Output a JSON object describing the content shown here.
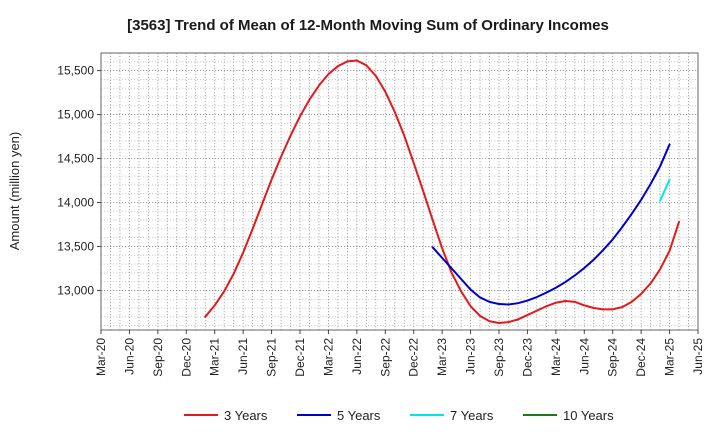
{
  "chart_data": {
    "type": "line",
    "title": "[3563]  Trend of Mean of 12-Month Moving Sum of Ordinary Incomes",
    "xlabel": "",
    "ylabel": "Amount (million yen)",
    "ylim": [
      12550,
      15700
    ],
    "yticks": [
      13000,
      13500,
      14000,
      14500,
      15000,
      15500
    ],
    "ytick_labels": [
      "13,000",
      "13,500",
      "14,000",
      "14,500",
      "15,000",
      "15,500"
    ],
    "xtick_labels": [
      "Mar-20",
      "Jun-20",
      "Sep-20",
      "Dec-20",
      "Mar-21",
      "Jun-21",
      "Sep-21",
      "Dec-21",
      "Mar-22",
      "Jun-22",
      "Sep-22",
      "Dec-22",
      "Mar-23",
      "Jun-23",
      "Sep-23",
      "Dec-23",
      "Mar-24",
      "Jun-24",
      "Sep-24",
      "Dec-24",
      "Mar-25",
      "Jun-25"
    ],
    "x_index_note": "x values are month offsets from Mar-20 (0 = Mar-20, 3 = Jun-20, ...)",
    "grid": true,
    "legend_position": "bottom",
    "series": [
      {
        "name": "3 Years",
        "color": "#e31a1c",
        "points": [
          [
            11,
            12700
          ],
          [
            12,
            12830
          ],
          [
            13,
            12990
          ],
          [
            14,
            13190
          ],
          [
            15,
            13430
          ],
          [
            16,
            13700
          ],
          [
            17,
            13980
          ],
          [
            18,
            14260
          ],
          [
            19,
            14520
          ],
          [
            20,
            14760
          ],
          [
            21,
            14980
          ],
          [
            22,
            15170
          ],
          [
            23,
            15330
          ],
          [
            24,
            15460
          ],
          [
            25,
            15550
          ],
          [
            26,
            15605
          ],
          [
            27,
            15615
          ],
          [
            28,
            15560
          ],
          [
            29,
            15440
          ],
          [
            30,
            15260
          ],
          [
            31,
            15030
          ],
          [
            32,
            14760
          ],
          [
            33,
            14450
          ],
          [
            34,
            14130
          ],
          [
            35,
            13800
          ],
          [
            36,
            13480
          ],
          [
            37,
            13200
          ],
          [
            38,
            12990
          ],
          [
            39,
            12820
          ],
          [
            40,
            12710
          ],
          [
            41,
            12650
          ],
          [
            42,
            12630
          ],
          [
            43,
            12640
          ],
          [
            44,
            12670
          ],
          [
            45,
            12720
          ],
          [
            46,
            12770
          ],
          [
            47,
            12820
          ],
          [
            48,
            12860
          ],
          [
            49,
            12880
          ],
          [
            50,
            12870
          ],
          [
            51,
            12830
          ],
          [
            52,
            12800
          ],
          [
            53,
            12785
          ],
          [
            54,
            12785
          ],
          [
            55,
            12810
          ],
          [
            56,
            12870
          ],
          [
            57,
            12960
          ],
          [
            58,
            13080
          ],
          [
            59,
            13240
          ],
          [
            60,
            13450
          ],
          [
            61,
            13780
          ]
        ]
      },
      {
        "name": "5 Years",
        "color": "#0000cc",
        "points": [
          [
            35,
            13490
          ],
          [
            36,
            13370
          ],
          [
            37,
            13250
          ],
          [
            38,
            13130
          ],
          [
            39,
            13010
          ],
          [
            40,
            12920
          ],
          [
            41,
            12870
          ],
          [
            42,
            12845
          ],
          [
            43,
            12840
          ],
          [
            44,
            12855
          ],
          [
            45,
            12885
          ],
          [
            46,
            12925
          ],
          [
            47,
            12975
          ],
          [
            48,
            13030
          ],
          [
            49,
            13095
          ],
          [
            50,
            13170
          ],
          [
            51,
            13255
          ],
          [
            52,
            13350
          ],
          [
            53,
            13460
          ],
          [
            54,
            13580
          ],
          [
            55,
            13720
          ],
          [
            56,
            13870
          ],
          [
            57,
            14030
          ],
          [
            58,
            14210
          ],
          [
            59,
            14410
          ],
          [
            60,
            14660
          ]
        ]
      },
      {
        "name": "7 Years",
        "color": "#00e5ee",
        "points": [
          [
            59,
            14020
          ],
          [
            60,
            14260
          ]
        ]
      },
      {
        "name": "10 Years",
        "color": "#1a7a1a",
        "points": []
      }
    ]
  }
}
